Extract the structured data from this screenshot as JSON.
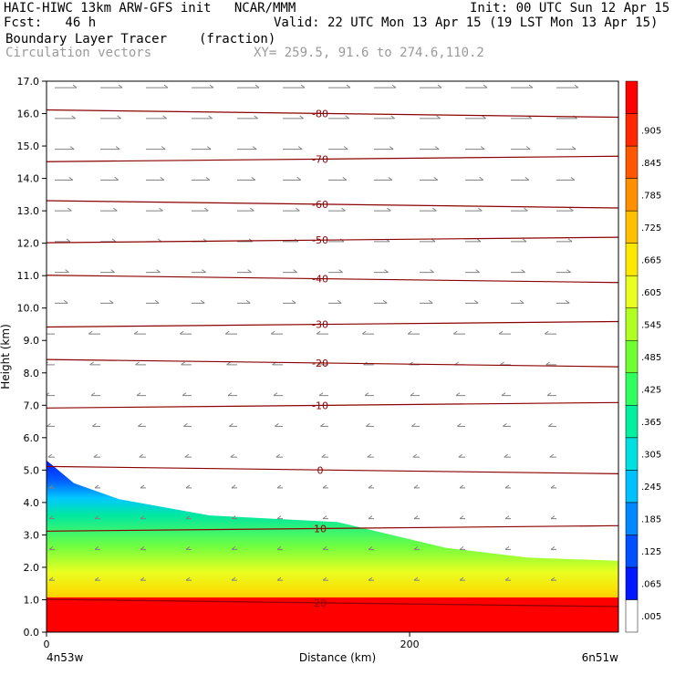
{
  "header": {
    "title": "HAIC-HIWC 13km ARW-GFS init   NCAR/MMM",
    "init": "Init: 00 UTC Sun 12 Apr 15",
    "fcst": "Fcst:   46 h",
    "valid": "Valid: 22 UTC Mon 13 Apr 15 (19 LST Mon 13 Apr 15)",
    "field": "Boundary Layer Tracer",
    "units": "(fraction)",
    "overlay": "Circulation vectors",
    "xy": "XY= 259.5, 91.6 to 274.6,110.2"
  },
  "chart_data": {
    "type": "heatmap",
    "xlabel": "Distance (km)",
    "ylabel": "Height (km)",
    "x_endpoints": [
      "4n53w",
      "6n51w"
    ],
    "xlim": [
      0,
      315
    ],
    "ylim": [
      0,
      17
    ],
    "x_ticks": [
      "0",
      "200"
    ],
    "x_tick_values": [
      0,
      200
    ],
    "y_ticks": [
      "0.0",
      "1.0",
      "2.0",
      "3.0",
      "4.0",
      "5.0",
      "6.0",
      "7.0",
      "8.0",
      "9.0",
      "10.0",
      "11.0",
      "12.0",
      "13.0",
      "14.0",
      "15.0",
      "16.0",
      "17.0"
    ],
    "colorbar": {
      "labels": [
        ".005",
        ".065",
        ".125",
        ".185",
        ".245",
        ".305",
        ".365",
        ".425",
        ".485",
        ".545",
        ".605",
        ".665",
        ".725",
        ".785",
        ".845",
        ".905"
      ],
      "values": [
        0.005,
        0.065,
        0.125,
        0.185,
        0.245,
        0.305,
        0.365,
        0.425,
        0.485,
        0.545,
        0.605,
        0.665,
        0.725,
        0.785,
        0.845,
        0.905
      ]
    },
    "tracer_top_km": [
      {
        "x": 0,
        "top": 5.3
      },
      {
        "x": 15,
        "top": 4.6
      },
      {
        "x": 40,
        "top": 4.1
      },
      {
        "x": 90,
        "top": 3.6
      },
      {
        "x": 160,
        "top": 3.4
      },
      {
        "x": 220,
        "top": 2.6
      },
      {
        "x": 265,
        "top": 2.3
      },
      {
        "x": 315,
        "top": 2.2
      }
    ],
    "temperature_contours": [
      {
        "label": "-80",
        "height_km": 16.0
      },
      {
        "label": "-70",
        "height_km": 14.6
      },
      {
        "label": "-60",
        "height_km": 13.2
      },
      {
        "label": "-50",
        "height_km": 12.1
      },
      {
        "label": "-40",
        "height_km": 10.9
      },
      {
        "label": "-30",
        "height_km": 9.5
      },
      {
        "label": "-20",
        "height_km": 8.3
      },
      {
        "label": "-10",
        "height_km": 7.0
      },
      {
        "label": "0",
        "height_km": 5.0
      },
      {
        "label": "10",
        "height_km": 3.2
      },
      {
        "label": "20",
        "height_km": 0.9
      }
    ]
  }
}
